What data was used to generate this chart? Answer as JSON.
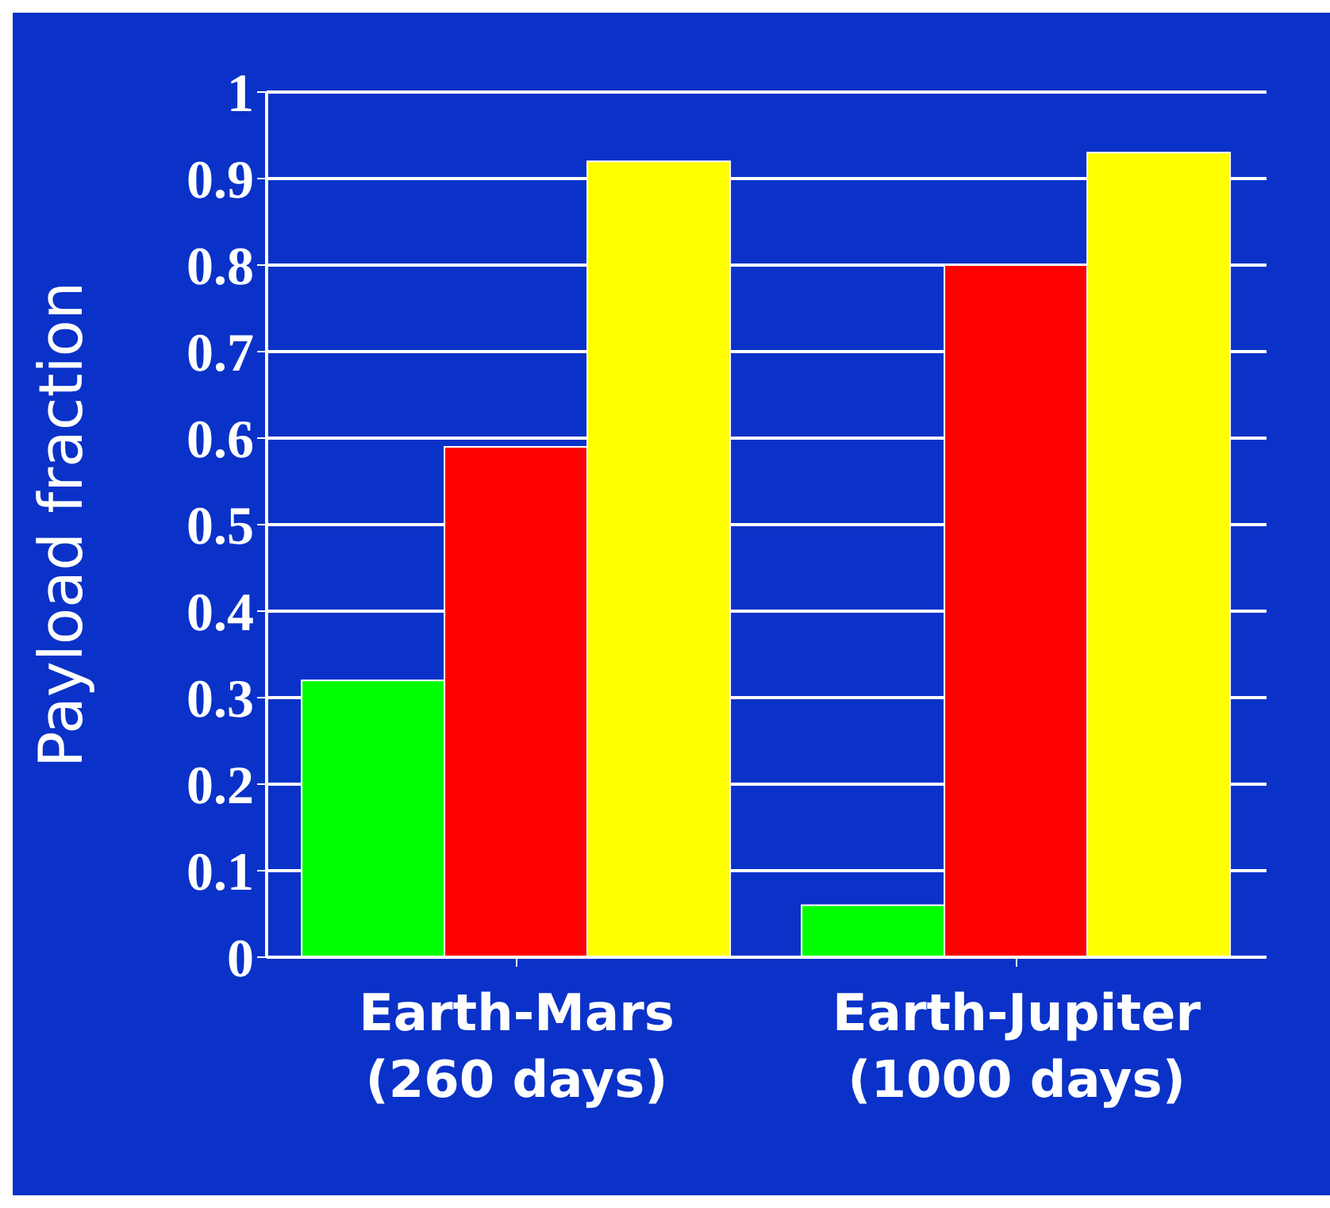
{
  "chart_data": {
    "type": "bar",
    "ylabel": "Payload fraction",
    "categories": [
      "Earth-Mars\n(260 days)",
      "Earth-Jupiter\n(1000 days)"
    ],
    "series": [
      {
        "color": "#00ff00",
        "values": [
          0.32,
          0.06
        ]
      },
      {
        "color": "#ff0000",
        "values": [
          0.59,
          0.8
        ]
      },
      {
        "color": "#ffff00",
        "values": [
          0.92,
          0.93
        ]
      }
    ],
    "ylim": [
      0,
      1
    ],
    "yticks": [
      0,
      0.1,
      0.2,
      0.3,
      0.4,
      0.5,
      0.6,
      0.7,
      0.8,
      0.9,
      1
    ],
    "grid": "y",
    "legend": false
  }
}
